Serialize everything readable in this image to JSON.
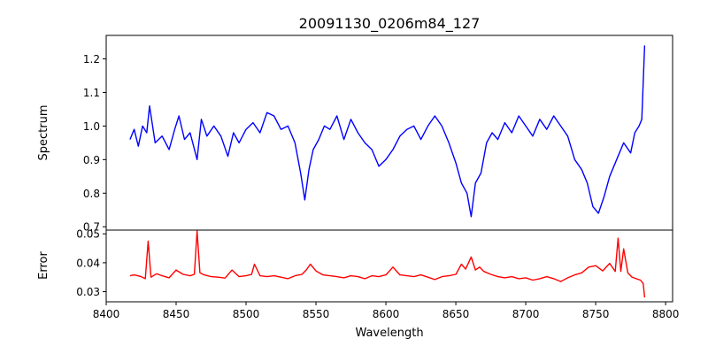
{
  "chart_data": [
    {
      "type": "line",
      "title": "20091130_0206m84_127",
      "xlabel": "Wavelength",
      "ylabel": "Spectrum",
      "xlim": [
        8400,
        8805
      ],
      "ylim": [
        0.69,
        1.27
      ],
      "xticks": [
        8400,
        8450,
        8500,
        8550,
        8600,
        8650,
        8700,
        8750,
        8800
      ],
      "yticks": [
        0.7,
        0.8,
        0.9,
        1.0,
        1.1,
        1.2
      ],
      "grid": false,
      "series": [
        {
          "color": "#0000ff",
          "x": [
            8417,
            8420,
            8423,
            8426,
            8429,
            8431,
            8435,
            8440,
            8445,
            8449,
            8452,
            8456,
            8460,
            8465,
            8468,
            8472,
            8477,
            8482,
            8487,
            8491,
            8495,
            8500,
            8505,
            8510,
            8515,
            8520,
            8525,
            8530,
            8535,
            8539,
            8542,
            8545,
            8548,
            8552,
            8556,
            8560,
            8565,
            8570,
            8575,
            8580,
            8585,
            8590,
            8595,
            8600,
            8605,
            8610,
            8615,
            8620,
            8625,
            8630,
            8635,
            8640,
            8645,
            8650,
            8654,
            8658,
            8661,
            8664,
            8668,
            8672,
            8676,
            8680,
            8685,
            8690,
            8695,
            8700,
            8705,
            8710,
            8715,
            8720,
            8725,
            8730,
            8735,
            8740,
            8744,
            8748,
            8752,
            8756,
            8760,
            8765,
            8770,
            8775,
            8778,
            8781,
            8783,
            8785
          ],
          "y": [
            0.96,
            0.99,
            0.94,
            1.0,
            0.98,
            1.06,
            0.95,
            0.97,
            0.93,
            0.99,
            1.03,
            0.96,
            0.98,
            0.9,
            1.02,
            0.97,
            1.0,
            0.97,
            0.91,
            0.98,
            0.95,
            0.99,
            1.01,
            0.98,
            1.04,
            1.03,
            0.99,
            1.0,
            0.95,
            0.86,
            0.78,
            0.87,
            0.93,
            0.96,
            1.0,
            0.99,
            1.03,
            0.96,
            1.02,
            0.98,
            0.95,
            0.93,
            0.88,
            0.9,
            0.93,
            0.97,
            0.99,
            1.0,
            0.96,
            1.0,
            1.03,
            1.0,
            0.95,
            0.89,
            0.83,
            0.8,
            0.73,
            0.83,
            0.86,
            0.95,
            0.98,
            0.96,
            1.01,
            0.98,
            1.03,
            1.0,
            0.97,
            1.02,
            0.99,
            1.03,
            1.0,
            0.97,
            0.9,
            0.87,
            0.83,
            0.76,
            0.74,
            0.79,
            0.85,
            0.9,
            0.95,
            0.92,
            0.98,
            1.0,
            1.02,
            1.24
          ]
        }
      ]
    },
    {
      "type": "line",
      "xlabel": "Wavelength",
      "ylabel": "Error",
      "xlim": [
        8400,
        8805
      ],
      "ylim": [
        0.0265,
        0.0513
      ],
      "xticks": [
        8400,
        8450,
        8500,
        8550,
        8600,
        8650,
        8700,
        8750,
        8800
      ],
      "yticks": [
        0.03,
        0.04,
        0.05
      ],
      "grid": false,
      "series": [
        {
          "color": "#ff0000",
          "x": [
            8417,
            8420,
            8425,
            8428,
            8430,
            8432,
            8436,
            8440,
            8445,
            8450,
            8455,
            8460,
            8463,
            8465,
            8467,
            8470,
            8475,
            8480,
            8485,
            8490,
            8495,
            8500,
            8504,
            8506,
            8510,
            8515,
            8520,
            8525,
            8530,
            8535,
            8540,
            8543,
            8546,
            8550,
            8555,
            8560,
            8565,
            8570,
            8575,
            8580,
            8585,
            8590,
            8595,
            8600,
            8605,
            8610,
            8615,
            8620,
            8625,
            8630,
            8635,
            8640,
            8645,
            8650,
            8654,
            8657,
            8661,
            8664,
            8667,
            8670,
            8675,
            8680,
            8685,
            8690,
            8695,
            8700,
            8705,
            8710,
            8715,
            8720,
            8725,
            8730,
            8735,
            8740,
            8745,
            8750,
            8755,
            8760,
            8764,
            8766,
            8768,
            8770,
            8773,
            8776,
            8779,
            8782,
            8784,
            8785
          ],
          "y": [
            0.0355,
            0.0358,
            0.0352,
            0.0345,
            0.0475,
            0.035,
            0.0362,
            0.0355,
            0.0348,
            0.0375,
            0.036,
            0.0355,
            0.036,
            0.051,
            0.0365,
            0.0358,
            0.0352,
            0.035,
            0.0347,
            0.0375,
            0.0352,
            0.0355,
            0.036,
            0.0395,
            0.0355,
            0.0352,
            0.0355,
            0.035,
            0.0345,
            0.0355,
            0.036,
            0.0375,
            0.0395,
            0.0372,
            0.0358,
            0.0355,
            0.0352,
            0.0348,
            0.0355,
            0.0352,
            0.0345,
            0.0355,
            0.0352,
            0.0358,
            0.0385,
            0.0358,
            0.0355,
            0.0352,
            0.0358,
            0.035,
            0.0342,
            0.0352,
            0.0355,
            0.036,
            0.0395,
            0.0378,
            0.042,
            0.0375,
            0.0385,
            0.037,
            0.036,
            0.0352,
            0.0348,
            0.0352,
            0.0345,
            0.0348,
            0.034,
            0.0345,
            0.0352,
            0.0345,
            0.0335,
            0.0348,
            0.0358,
            0.0365,
            0.0385,
            0.039,
            0.0372,
            0.0398,
            0.037,
            0.0485,
            0.037,
            0.0448,
            0.0365,
            0.035,
            0.0345,
            0.034,
            0.0328,
            0.028
          ]
        }
      ]
    }
  ]
}
